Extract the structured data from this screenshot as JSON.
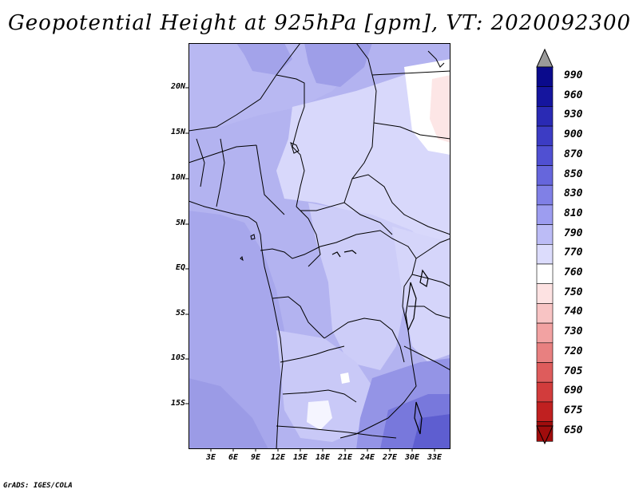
{
  "title": "Geopotential Height at 925hPa [gpm], VT: 2020092300",
  "footer": "GrADS: IGES/COLA",
  "map": {
    "lon_range": [
      0,
      35
    ],
    "lat_range": [
      -20,
      25
    ],
    "lat_ticks": [
      "20N",
      "15N",
      "10N",
      "5N",
      "EQ",
      "5S",
      "10S",
      "15S"
    ],
    "lon_ticks": [
      "3E",
      "6E",
      "9E",
      "12E",
      "15E",
      "18E",
      "21E",
      "24E",
      "27E",
      "30E",
      "33E"
    ]
  },
  "colorbar": {
    "labels": [
      "990",
      "960",
      "930",
      "900",
      "870",
      "850",
      "830",
      "810",
      "790",
      "770",
      "760",
      "750",
      "740",
      "730",
      "720",
      "705",
      "690",
      "675",
      "650"
    ],
    "colors": [
      "#0a0a8c",
      "#15159e",
      "#2a2ab4",
      "#3c3cc4",
      "#5050d2",
      "#6666dc",
      "#8080e6",
      "#9d9df0",
      "#bcbcf6",
      "#dcdcfc",
      "#ffffff",
      "#fde2e2",
      "#f8c4c4",
      "#f2a2a2",
      "#e88080",
      "#de5c5c",
      "#d23c3c",
      "#c02020",
      "#a00c0c"
    ]
  }
}
